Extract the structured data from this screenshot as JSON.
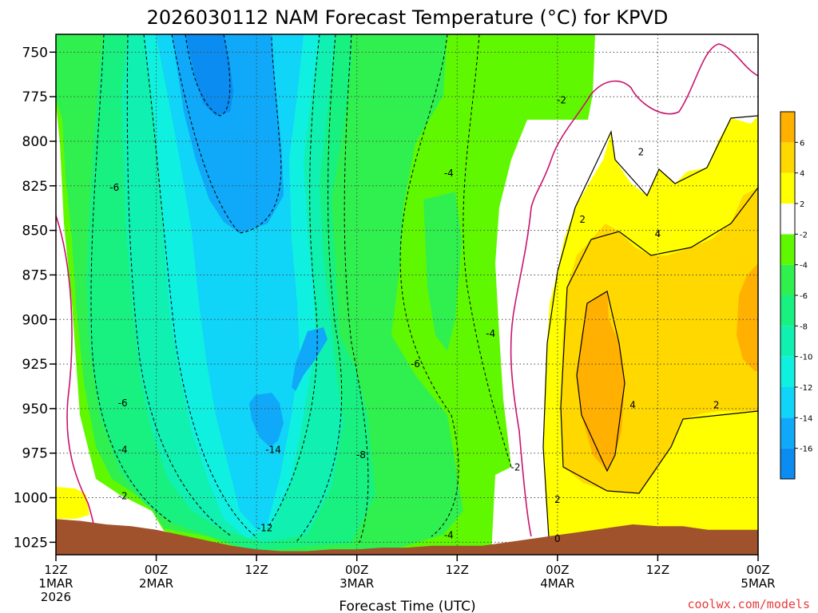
{
  "chart_data": {
    "type": "heatmap",
    "title": "2026030112 NAM Forecast Temperature (°C) for KPVD",
    "xlabel": "Forecast Time (UTC)",
    "ylabel": "",
    "x_range": [
      0,
      84
    ],
    "y_range": [
      740,
      1032
    ],
    "y_scale": "inverted",
    "y_ticks": [
      750,
      775,
      800,
      825,
      850,
      875,
      900,
      925,
      950,
      975,
      1000,
      1025
    ],
    "x_ticks": [
      {
        "x": 0,
        "lines": [
          "12Z",
          "1MAR",
          "2026"
        ]
      },
      {
        "x": 12,
        "lines": [
          "00Z",
          "2MAR"
        ]
      },
      {
        "x": 24,
        "lines": [
          "12Z"
        ]
      },
      {
        "x": 36,
        "lines": [
          "00Z",
          "3MAR"
        ]
      },
      {
        "x": 48,
        "lines": [
          "12Z"
        ]
      },
      {
        "x": 60,
        "lines": [
          "00Z",
          "4MAR"
        ]
      },
      {
        "x": 72,
        "lines": [
          "12Z"
        ]
      },
      {
        "x": 84,
        "lines": [
          "00Z",
          "5MAR"
        ]
      }
    ],
    "grid": true,
    "colorbar": {
      "placement": "right",
      "levels": [
        -18,
        -16,
        -14,
        -12,
        -10,
        -8,
        -6,
        -4,
        -2,
        2,
        4,
        6,
        8
      ],
      "labels": [
        "-16",
        "-14",
        "-12",
        "-10",
        "-8",
        "-6",
        "-4",
        "-2",
        "2",
        "4",
        "6"
      ],
      "colors": [
        "#0a8cf0",
        "#10a8f8",
        "#10d4f8",
        "#10f0e0",
        "#10f0b0",
        "#18f080",
        "#30f050",
        "#60f800",
        "#ffffff",
        "#ffff00",
        "#ffd800",
        "#ffb000"
      ]
    },
    "surface_pressure": [
      [
        0,
        1012
      ],
      [
        3,
        1013
      ],
      [
        6,
        1015
      ],
      [
        9,
        1016
      ],
      [
        12,
        1018
      ],
      [
        15,
        1021
      ],
      [
        18,
        1024
      ],
      [
        21,
        1027
      ],
      [
        24,
        1029
      ],
      [
        27,
        1030
      ],
      [
        30,
        1030
      ],
      [
        33,
        1029
      ],
      [
        36,
        1029
      ],
      [
        39,
        1028
      ],
      [
        42,
        1028
      ],
      [
        45,
        1027
      ],
      [
        48,
        1027
      ],
      [
        51,
        1027
      ],
      [
        54,
        1025
      ],
      [
        57,
        1023
      ],
      [
        60,
        1021
      ],
      [
        63,
        1019
      ],
      [
        66,
        1017
      ],
      [
        69,
        1015
      ],
      [
        72,
        1016
      ],
      [
        75,
        1016
      ],
      [
        78,
        1018
      ],
      [
        81,
        1018
      ],
      [
        84,
        1018
      ]
    ],
    "contour_labels": [
      {
        "x": 7,
        "y": 826,
        "text": "-6"
      },
      {
        "x": 8,
        "y": 947,
        "text": "-6"
      },
      {
        "x": 8,
        "y": 973,
        "text": "-4"
      },
      {
        "x": 8,
        "y": 999,
        "text": "-2"
      },
      {
        "x": 25,
        "y": 1017,
        "text": "-12"
      },
      {
        "x": 26,
        "y": 973,
        "text": "-14"
      },
      {
        "x": 36.5,
        "y": 976,
        "text": "-8"
      },
      {
        "x": 43,
        "y": 925,
        "text": "-6"
      },
      {
        "x": 47,
        "y": 1021,
        "text": "-4"
      },
      {
        "x": 47,
        "y": 818,
        "text": "-4"
      },
      {
        "x": 52,
        "y": 908,
        "text": "-4"
      },
      {
        "x": 55,
        "y": 983,
        "text": "-2"
      },
      {
        "x": 60,
        "y": 1023,
        "text": "0"
      },
      {
        "x": 60,
        "y": 1001,
        "text": "2"
      },
      {
        "x": 60.5,
        "y": 777,
        "text": "-2"
      },
      {
        "x": 63,
        "y": 844,
        "text": "2"
      },
      {
        "x": 70,
        "y": 806,
        "text": "2"
      },
      {
        "x": 72,
        "y": 852,
        "text": "4"
      },
      {
        "x": 69,
        "y": 948,
        "text": "4"
      },
      {
        "x": 79,
        "y": 948,
        "text": "2"
      }
    ]
  },
  "footer": {
    "watermark": "coolwx.com/models"
  }
}
